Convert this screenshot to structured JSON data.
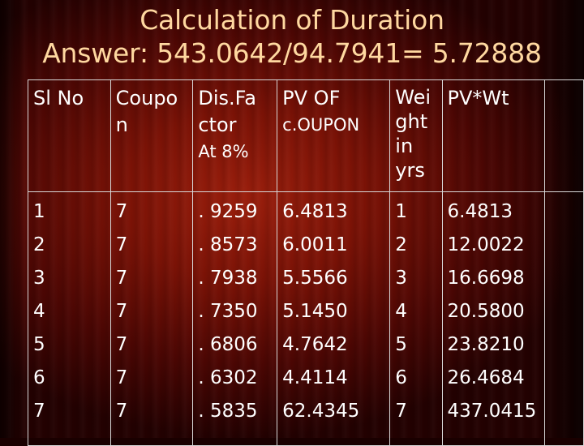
{
  "title": {
    "line1": "Calculation of Duration",
    "line2": "Answer: 543.0642/94.7941= 5.72888"
  },
  "table": {
    "headers": {
      "sl_no": "Sl No",
      "coupon_part1": "Coupo",
      "coupon_part2": "n",
      "dis_part1": "Dis.Fa",
      "dis_part2": "ctor",
      "dis_part3": "At 8%",
      "pv_part1": "PV OF",
      "pv_part2": "c.OUPON",
      "wei_part1": "Wei",
      "wei_part2": "ght",
      "wei_part3": "in",
      "wei_part4": "yrs",
      "pvwt": "PV*Wt"
    },
    "columns": {
      "sl_no": [
        "1",
        "2",
        "3",
        "4",
        "5",
        "6",
        "7"
      ],
      "coupon": [
        "7",
        "7",
        "7",
        "7",
        "7",
        "7",
        "7"
      ],
      "discount_factor": [
        ". 9259",
        ". 8573",
        ". 7938",
        ". 7350",
        ". 6806",
        ". 6302",
        ". 5835"
      ],
      "pv_coupon": [
        "6.4813",
        "6.0011",
        "5.5566",
        "5.1450",
        "4.7642",
        "4.4114",
        "62.4345"
      ],
      "weight": [
        "1",
        "2",
        "3",
        "4",
        "5",
        "6",
        "7"
      ],
      "pv_wt": [
        "6.4813",
        "12.0022",
        "16.6698",
        "20.5800",
        "23.8210",
        "26.4684",
        "437.0415"
      ]
    }
  },
  "colors": {
    "title": "#ffd8a0",
    "text": "#ffffff",
    "border": "#d8d8d8",
    "background": "#7a1206"
  }
}
